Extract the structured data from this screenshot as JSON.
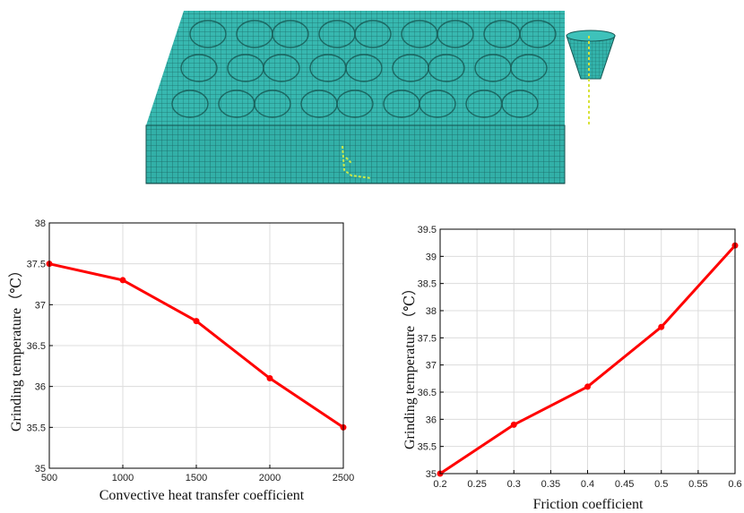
{
  "figure": {
    "model_name": "finite-element mesh of workpiece with grinding tool",
    "mesh_color": "#35b5ad",
    "mesh_dark": "#1f6f6b",
    "tool_color": "#2fa9a3"
  },
  "chart_data": [
    {
      "type": "line",
      "title": "",
      "xlabel": "Convective heat transfer coefficient",
      "ylabel": "Grinding temperature（℃）",
      "x": [
        500,
        1000,
        1500,
        2000,
        2500
      ],
      "series": [
        {
          "name": "Grinding temperature",
          "values": [
            37.5,
            37.3,
            36.8,
            36.1,
            35.5
          ],
          "color": "#ff0000"
        }
      ],
      "xlim": [
        500,
        2500
      ],
      "ylim": [
        35,
        38
      ],
      "xticks": [
        500,
        1000,
        1500,
        2000,
        2500
      ],
      "yticks": [
        35,
        35.5,
        36,
        36.5,
        37,
        37.5,
        38
      ],
      "xtick_labels": [
        "500",
        "1000",
        "1500",
        "2000",
        "2500"
      ],
      "ytick_labels": [
        "35",
        "35.5",
        "36",
        "36.5",
        "37",
        "37.5",
        "38"
      ],
      "grid": true
    },
    {
      "type": "line",
      "title": "",
      "xlabel": "Friction coefficient",
      "ylabel": "Grinding temperature（℃）",
      "x": [
        0.2,
        0.3,
        0.4,
        0.5,
        0.6
      ],
      "series": [
        {
          "name": "Grinding temperature",
          "values": [
            35.0,
            35.9,
            36.6,
            37.7,
            39.2
          ],
          "color": "#ff0000"
        }
      ],
      "xlim": [
        0.2,
        0.6
      ],
      "ylim": [
        35,
        39.5
      ],
      "xticks": [
        0.2,
        0.25,
        0.3,
        0.35,
        0.4,
        0.45,
        0.5,
        0.55,
        0.6
      ],
      "yticks": [
        35,
        35.5,
        36,
        36.5,
        37,
        37.5,
        38,
        38.5,
        39,
        39.5
      ],
      "xtick_labels": [
        "0.2",
        "0.25",
        "0.3",
        "0.35",
        "0.4",
        "0.45",
        "0.5",
        "0.55",
        "0.6"
      ],
      "ytick_labels": [
        "35",
        "35.5",
        "36",
        "36.5",
        "37",
        "37.5",
        "38",
        "38.5",
        "39",
        "39.5"
      ],
      "grid": true
    }
  ]
}
